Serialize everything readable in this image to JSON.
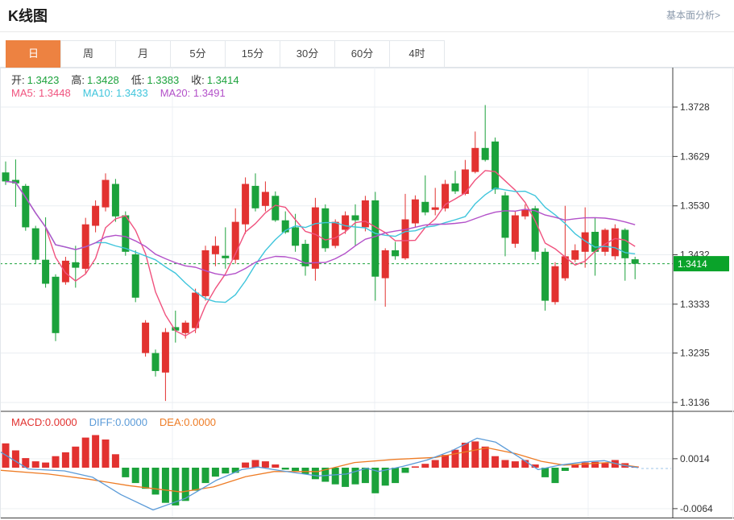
{
  "header": {
    "title": "K线图",
    "link_label": "基本面分析>"
  },
  "tabs": {
    "items": [
      {
        "label": "日",
        "active": true
      },
      {
        "label": "周",
        "active": false
      },
      {
        "label": "月",
        "active": false
      },
      {
        "label": "5分",
        "active": false
      },
      {
        "label": "15分",
        "active": false
      },
      {
        "label": "30分",
        "active": false
      },
      {
        "label": "60分",
        "active": false
      },
      {
        "label": "4时",
        "active": false
      }
    ]
  },
  "ohlc": {
    "o_label": "开:",
    "o": "1.3423",
    "h_label": "高:",
    "h": "1.3428",
    "l_label": "低:",
    "l": "1.3383",
    "c_label": "收:",
    "c": "1.3414"
  },
  "ma_info": {
    "ma5_label": "MA5:",
    "ma5": "1.3448",
    "ma10_label": "MA10:",
    "ma10": "1.3433",
    "ma20_label": "MA20:",
    "ma20": "1.3491"
  },
  "macd_info": {
    "macd_label": "MACD:",
    "macd": "0.0000",
    "diff_label": "DIFF:",
    "diff": "0.0000",
    "dea_label": "DEA:",
    "dea": "0.0000"
  },
  "colors": {
    "up": "#e23230",
    "down": "#1ba23b",
    "badge": "#0aa32a",
    "ma5": "#f0527e",
    "ma10": "#3fc5dc",
    "ma20": "#b351c9",
    "diff": "#5b9bd8",
    "dea": "#ee7c25",
    "dash_tail": "#9cc6e8",
    "tab_active": "#ed8241",
    "grid": "#e9edf1",
    "axis": "#3c3c3c"
  },
  "chart_data": {
    "type": "candlestick",
    "title": "K线图",
    "main": {
      "yticks": [
        1.3728,
        1.3629,
        1.353,
        1.3432,
        1.3333,
        1.3235,
        1.3136
      ],
      "current_price": 1.3414,
      "last_price": "1.3414",
      "ma_periods": [
        5,
        10,
        20
      ],
      "candles": [
        [
          1.3597,
          1.3619,
          1.3572,
          1.3579
        ],
        [
          1.3582,
          1.3623,
          1.3528,
          1.3575
        ],
        [
          1.357,
          1.3574,
          1.348,
          1.3487
        ],
        [
          1.3485,
          1.349,
          1.3414,
          1.3422
        ],
        [
          1.3422,
          1.3507,
          1.3366,
          1.3374
        ],
        [
          1.3388,
          1.3393,
          1.3259,
          1.3275
        ],
        [
          1.3377,
          1.3428,
          1.3372,
          1.342
        ],
        [
          1.3417,
          1.345,
          1.3366,
          1.3406
        ],
        [
          1.3404,
          1.3506,
          1.3393,
          1.3493
        ],
        [
          1.349,
          1.3541,
          1.3477,
          1.353
        ],
        [
          1.3527,
          1.3595,
          1.3519,
          1.3582
        ],
        [
          1.3574,
          1.3584,
          1.3498,
          1.3509
        ],
        [
          1.3511,
          1.3519,
          1.343,
          1.3438
        ],
        [
          1.3433,
          1.3441,
          1.3337,
          1.3346
        ],
        [
          1.3235,
          1.3301,
          1.3228,
          1.3296
        ],
        [
          1.3235,
          1.3242,
          1.3188,
          1.3199
        ],
        [
          1.3196,
          1.3285,
          1.3139,
          1.3277
        ],
        [
          1.3287,
          1.332,
          1.3256,
          1.328
        ],
        [
          1.3275,
          1.33,
          1.3264,
          1.3296
        ],
        [
          1.3285,
          1.3364,
          1.3275,
          1.3356
        ],
        [
          1.3349,
          1.345,
          1.334,
          1.3441
        ],
        [
          1.3433,
          1.3469,
          1.3409,
          1.345
        ],
        [
          1.343,
          1.3487,
          1.3404,
          1.3425
        ],
        [
          1.3422,
          1.3525,
          1.3414,
          1.3498
        ],
        [
          1.3493,
          1.3587,
          1.3474,
          1.3574
        ],
        [
          1.357,
          1.3595,
          1.3519,
          1.3525
        ],
        [
          1.353,
          1.3579,
          1.3519,
          1.3558
        ],
        [
          1.355,
          1.3559,
          1.3498,
          1.3501
        ],
        [
          1.3501,
          1.3519,
          1.3474,
          1.3477
        ],
        [
          1.3487,
          1.3514,
          1.3438,
          1.345
        ],
        [
          1.3454,
          1.3462,
          1.339,
          1.3409
        ],
        [
          1.3404,
          1.3546,
          1.338,
          1.3527
        ],
        [
          1.3525,
          1.3533,
          1.3438,
          1.3445
        ],
        [
          1.345,
          1.3503,
          1.3445,
          1.3498
        ],
        [
          1.3482,
          1.3519,
          1.3474,
          1.3511
        ],
        [
          1.3511,
          1.3533,
          1.345,
          1.3501
        ],
        [
          1.3487,
          1.355,
          1.3479,
          1.3541
        ],
        [
          1.3541,
          1.3558,
          1.334,
          1.3388
        ],
        [
          1.3385,
          1.3445,
          1.3328,
          1.3441
        ],
        [
          1.3441,
          1.3458,
          1.3422,
          1.3429
        ],
        [
          1.3425,
          1.3554,
          1.3422,
          1.3503
        ],
        [
          1.3495,
          1.3551,
          1.3487,
          1.3543
        ],
        [
          1.3538,
          1.3591,
          1.3511,
          1.3517
        ],
        [
          1.3522,
          1.3566,
          1.3511,
          1.3527
        ],
        [
          1.3525,
          1.3582,
          1.3519,
          1.3574
        ],
        [
          1.3575,
          1.36,
          1.3554,
          1.3559
        ],
        [
          1.3554,
          1.3622,
          1.3551,
          1.3603
        ],
        [
          1.3598,
          1.3679,
          1.3595,
          1.3646
        ],
        [
          1.3646,
          1.3732,
          1.3619,
          1.3622
        ],
        [
          1.3659,
          1.3667,
          1.3554,
          1.3563
        ],
        [
          1.3551,
          1.3558,
          1.3429,
          1.3466
        ],
        [
          1.3454,
          1.3519,
          1.3446,
          1.3511
        ],
        [
          1.3509,
          1.3533,
          1.3503,
          1.3522
        ],
        [
          1.3525,
          1.353,
          1.3422,
          1.3438
        ],
        [
          1.3438,
          1.3445,
          1.332,
          1.334
        ],
        [
          1.3337,
          1.3417,
          1.3332,
          1.3409
        ],
        [
          1.3385,
          1.353,
          1.338,
          1.3429
        ],
        [
          1.3422,
          1.3453,
          1.3417,
          1.3441
        ],
        [
          1.3438,
          1.3527,
          1.3406,
          1.3477
        ],
        [
          1.3478,
          1.3506,
          1.339,
          1.3438
        ],
        [
          1.3438,
          1.3485,
          1.343,
          1.3482
        ],
        [
          1.3429,
          1.3493,
          1.3422,
          1.3485
        ],
        [
          1.3482,
          1.3485,
          1.338,
          1.3425
        ],
        [
          1.3423,
          1.3428,
          1.3383,
          1.3414
        ]
      ]
    },
    "macd": {
      "yticks": [
        0.0014,
        -0.0064
      ],
      "hist": [
        0.0038,
        0.0027,
        0.0015,
        0.001,
        0.0008,
        0.0018,
        0.0024,
        0.0033,
        0.0047,
        0.0051,
        0.0044,
        0.0021,
        -0.0015,
        -0.0024,
        -0.0033,
        -0.0042,
        -0.0055,
        -0.0059,
        -0.0052,
        -0.0036,
        -0.0024,
        -0.0014,
        -0.0009,
        -0.0008,
        0.0008,
        0.0012,
        0.001,
        0.0005,
        -0.0003,
        -0.0005,
        -0.001,
        -0.0018,
        -0.0022,
        -0.0026,
        -0.003,
        -0.0026,
        -0.0024,
        -0.004,
        -0.0028,
        -0.0024,
        -0.0008,
        0.0002,
        0.0006,
        0.0012,
        0.002,
        0.0028,
        0.0039,
        0.0041,
        0.0033,
        0.0018,
        0.0012,
        0.001,
        0.0012,
        0.0005,
        -0.0015,
        -0.0024,
        -0.0005,
        0.0005,
        0.0008,
        0.0009,
        0.0007,
        0.0012,
        0.0007,
        0.0002
      ],
      "diff_points": [
        [
          0,
          0.0025
        ],
        [
          35,
          -0.0002
        ],
        [
          80,
          -0.0005
        ],
        [
          115,
          -0.0015
        ],
        [
          150,
          -0.0042
        ],
        [
          190,
          -0.0066
        ],
        [
          230,
          -0.0048
        ],
        [
          268,
          -0.002
        ],
        [
          300,
          -0.0003
        ],
        [
          320,
          0.0001
        ],
        [
          350,
          -0.0005
        ],
        [
          395,
          -0.0013
        ],
        [
          430,
          -0.001
        ],
        [
          455,
          -0.0001
        ],
        [
          470,
          -0.0006
        ],
        [
          500,
          0.0002
        ],
        [
          530,
          0.0012
        ],
        [
          560,
          0.0026
        ],
        [
          592,
          0.0046
        ],
        [
          615,
          0.004
        ],
        [
          645,
          0.0016
        ],
        [
          668,
          -0.0003
        ],
        [
          695,
          0.0004
        ],
        [
          725,
          0.0009
        ],
        [
          750,
          0.0011
        ],
        [
          772,
          0.0004
        ],
        [
          792,
          0.0
        ]
      ],
      "dea_points": [
        [
          0,
          -0.0004
        ],
        [
          60,
          -0.001
        ],
        [
          110,
          -0.0018
        ],
        [
          160,
          -0.0028
        ],
        [
          225,
          -0.0038
        ],
        [
          265,
          -0.003
        ],
        [
          305,
          -0.0014
        ],
        [
          340,
          -0.0006
        ],
        [
          395,
          -0.0006
        ],
        [
          440,
          0.0008
        ],
        [
          490,
          0.0013
        ],
        [
          540,
          0.0016
        ],
        [
          575,
          0.0024
        ],
        [
          605,
          0.0031
        ],
        [
          640,
          0.0022
        ],
        [
          672,
          0.001
        ],
        [
          700,
          0.0004
        ],
        [
          730,
          0.0006
        ],
        [
          755,
          0.0008
        ],
        [
          775,
          0.0004
        ],
        [
          792,
          0.0001
        ]
      ]
    }
  }
}
